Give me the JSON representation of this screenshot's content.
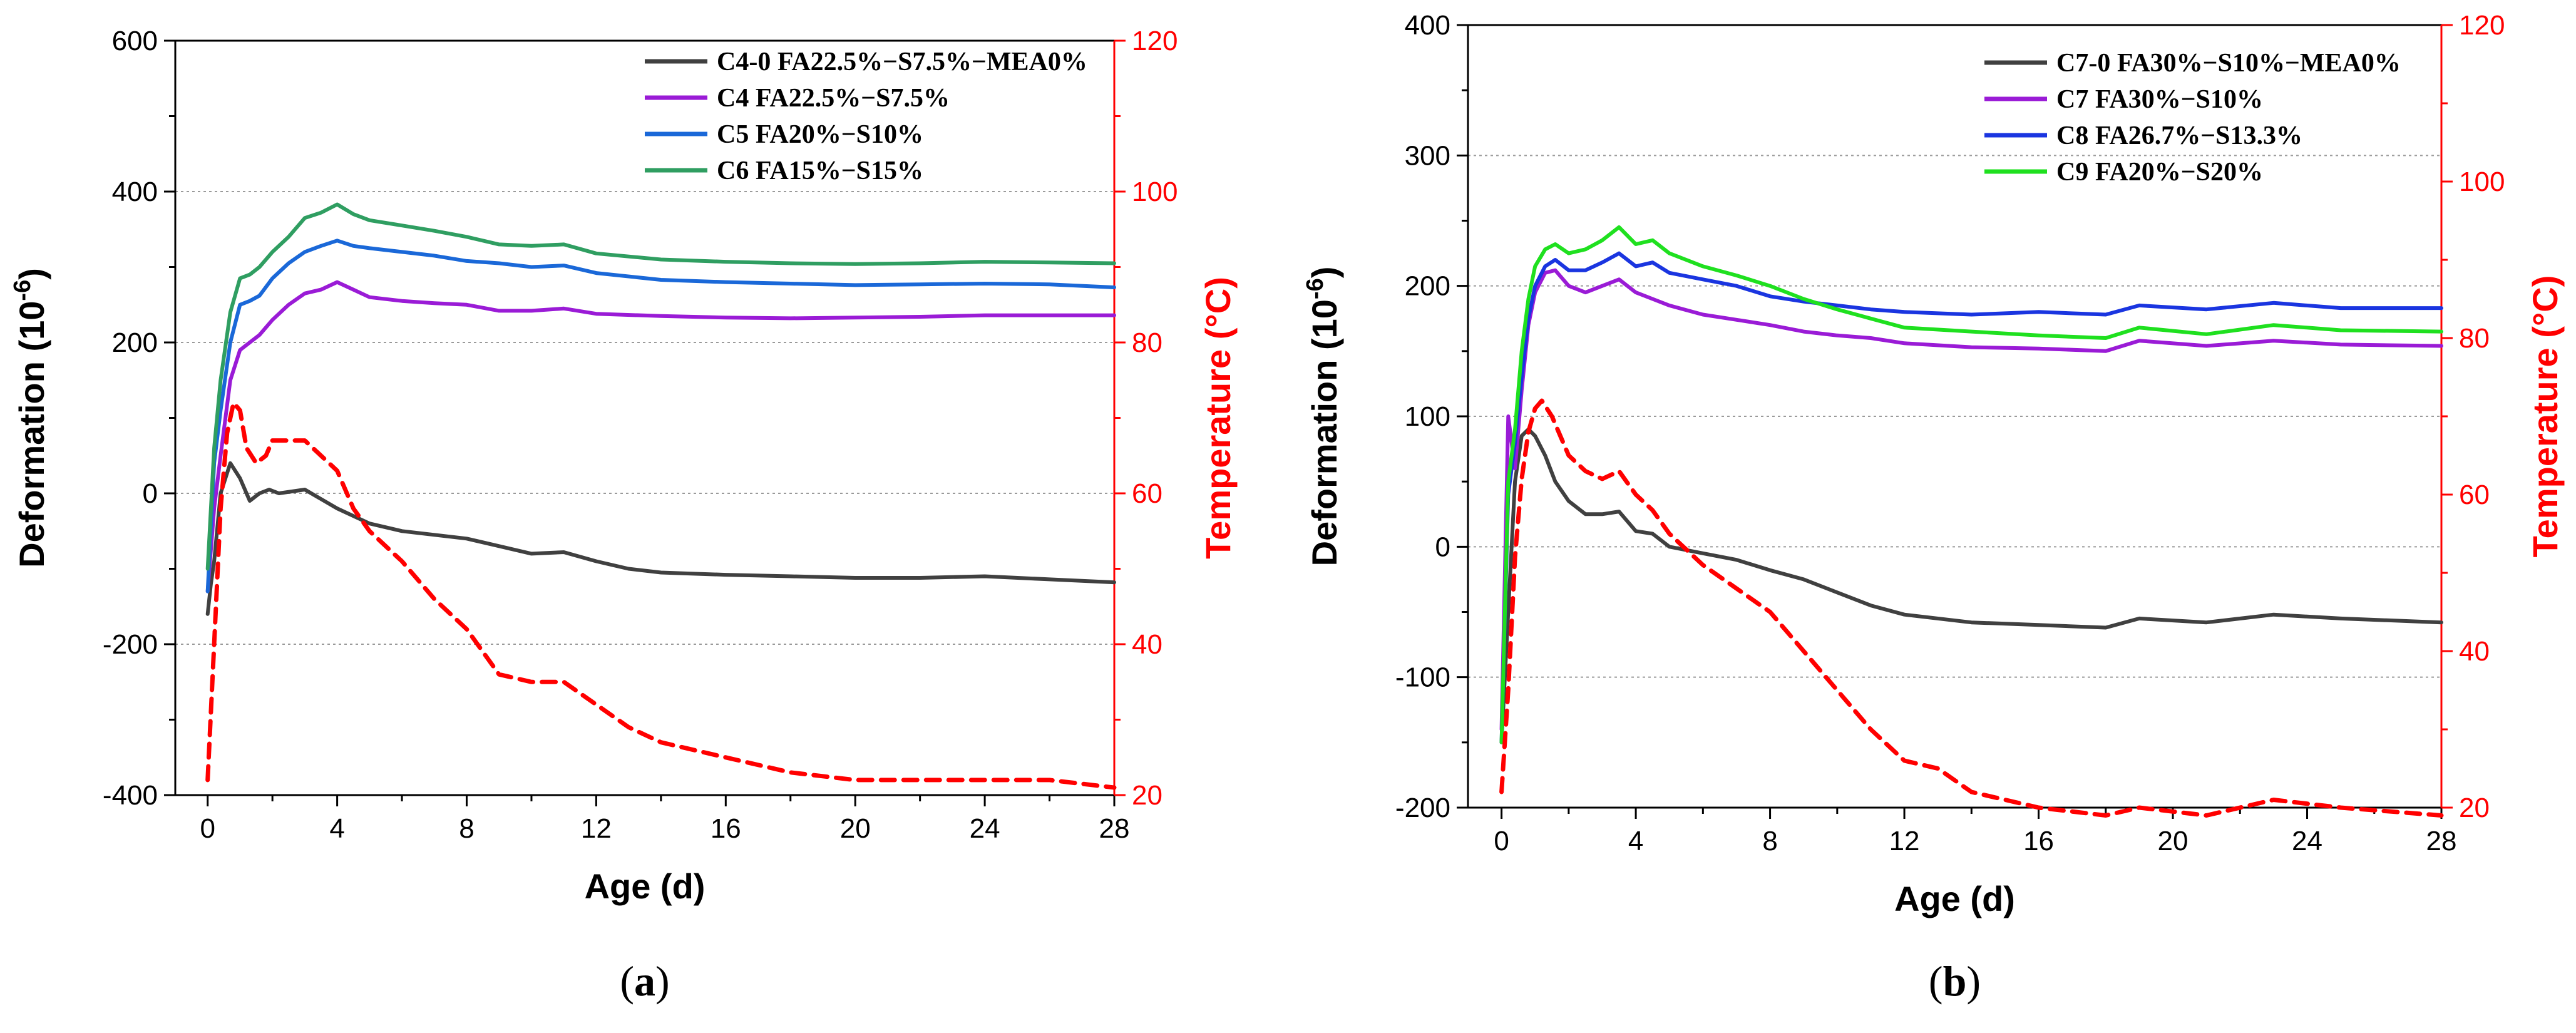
{
  "chart_data": [
    {
      "type": "line",
      "panel_label": "(a)",
      "panel_letter": "a",
      "xlabel": "Age (d)",
      "ylabel": "Deformation (10",
      "ylabel_exp": "-6",
      "ylabel_close": ")",
      "y2label": "Temperature (°C)",
      "xlim": [
        -1,
        28
      ],
      "ylim": [
        -400,
        600
      ],
      "y2lim": [
        20,
        120
      ],
      "xticks": [
        0,
        4,
        8,
        12,
        16,
        20,
        24,
        28
      ],
      "xtick_labels": [
        "0",
        "4",
        "8",
        "12",
        "16",
        "20",
        "24",
        "28"
      ],
      "yticks": [
        -400,
        -200,
        0,
        200,
        400,
        600
      ],
      "ytick_labels": [
        "-400",
        "-200",
        "0",
        "200",
        "400",
        "600"
      ],
      "y2ticks": [
        20,
        40,
        60,
        80,
        100,
        120
      ],
      "y2tick_labels": [
        "20",
        "40",
        "60",
        "80",
        "100",
        "120"
      ],
      "legend_position": "top-right",
      "series": [
        {
          "name": "C4-0 FA22.5%−S7.5%−MEA0%",
          "color": "#404040",
          "x": [
            0,
            0.1,
            0.2,
            0.4,
            0.7,
            1.0,
            1.3,
            1.6,
            1.9,
            2.2,
            3,
            4,
            5,
            6,
            8,
            9,
            10,
            11,
            12,
            13,
            14,
            16,
            18,
            20,
            22,
            24,
            26,
            28
          ],
          "values": [
            -160,
            -120,
            -90,
            0,
            40,
            20,
            -10,
            0,
            5,
            0,
            5,
            -20,
            -40,
            -50,
            -60,
            -70,
            -80,
            -78,
            -90,
            -100,
            -105,
            -108,
            -110,
            -112,
            -112,
            -110,
            -114,
            -118
          ]
        },
        {
          "name": "C4 FA22.5%−S7.5%",
          "color": "#9a1bd6",
          "x": [
            0,
            0.2,
            0.4,
            0.7,
            1.0,
            1.3,
            1.6,
            2,
            2.5,
            3,
            3.5,
            4,
            4.5,
            5,
            6,
            7,
            8,
            9,
            10,
            11,
            12,
            14,
            16,
            18,
            20,
            22,
            24,
            26,
            28
          ],
          "values": [
            -130,
            -20,
            50,
            150,
            190,
            200,
            210,
            230,
            250,
            265,
            270,
            280,
            270,
            260,
            255,
            252,
            250,
            242,
            242,
            245,
            238,
            235,
            233,
            232,
            233,
            234,
            236,
            236,
            236
          ]
        },
        {
          "name": "C5 FA20%−S10%",
          "color": "#1a68d8",
          "x": [
            0,
            0.2,
            0.4,
            0.7,
            1.0,
            1.3,
            1.6,
            2,
            2.5,
            3,
            3.5,
            4,
            4.5,
            5,
            6,
            7,
            8,
            9,
            10,
            11,
            12,
            14,
            16,
            18,
            20,
            22,
            24,
            26,
            28
          ],
          "values": [
            -130,
            40,
            110,
            200,
            250,
            255,
            262,
            285,
            305,
            320,
            328,
            335,
            328,
            325,
            320,
            315,
            308,
            305,
            300,
            302,
            292,
            283,
            280,
            278,
            276,
            277,
            278,
            277,
            273
          ]
        },
        {
          "name": "C6 FA15%−S15%",
          "color": "#2f9e61",
          "x": [
            0,
            0.2,
            0.4,
            0.7,
            1.0,
            1.3,
            1.6,
            2,
            2.5,
            3,
            3.5,
            4,
            4.5,
            5,
            6,
            7,
            8,
            9,
            10,
            11,
            12,
            14,
            16,
            18,
            20,
            22,
            24,
            26,
            28
          ],
          "values": [
            -100,
            60,
            150,
            240,
            285,
            290,
            300,
            320,
            340,
            365,
            372,
            383,
            370,
            362,
            355,
            348,
            340,
            330,
            328,
            330,
            318,
            310,
            307,
            305,
            304,
            305,
            307,
            306,
            305
          ]
        },
        {
          "name": "Temperature",
          "color": "#ff0000",
          "dashed": true,
          "axis": "y2",
          "x": [
            0,
            0.2,
            0.4,
            0.6,
            0.8,
            1.0,
            1.2,
            1.5,
            1.8,
            2,
            3,
            3.5,
            4,
            4.5,
            5,
            6,
            7,
            8,
            9,
            10,
            11,
            12,
            13,
            14,
            16,
            18,
            20,
            22,
            24,
            26,
            28
          ],
          "values": [
            22,
            40,
            58,
            68,
            72,
            71,
            66,
            64,
            65,
            67,
            67,
            65,
            63,
            58,
            55,
            51,
            46,
            42,
            36,
            35,
            35,
            32,
            29,
            27,
            25,
            23,
            22,
            22,
            22,
            22,
            21
          ]
        }
      ]
    },
    {
      "type": "line",
      "panel_label": "(b)",
      "panel_letter": "b",
      "xlabel": "Age (d)",
      "ylabel": "Deformation (10",
      "ylabel_exp": "-6",
      "ylabel_close": ")",
      "y2label": "Temperature (°C)",
      "xlim": [
        -1,
        28
      ],
      "ylim": [
        -200,
        400
      ],
      "y2lim": [
        20,
        120
      ],
      "xticks": [
        0,
        4,
        8,
        12,
        16,
        20,
        24,
        28
      ],
      "xtick_labels": [
        "0",
        "4",
        "8",
        "12",
        "16",
        "20",
        "24",
        "28"
      ],
      "yticks": [
        -200,
        -100,
        0,
        100,
        200,
        300,
        400
      ],
      "ytick_labels": [
        "-200",
        "-100",
        "0",
        "100",
        "200",
        "300",
        "400"
      ],
      "y2ticks": [
        20,
        40,
        60,
        80,
        100,
        120
      ],
      "y2tick_labels": [
        "20",
        "40",
        "60",
        "80",
        "100",
        "120"
      ],
      "legend_position": "top-right",
      "series": [
        {
          "name": "C7-0 FA30%−S10%−MEA0%",
          "color": "#404040",
          "x": [
            0,
            0.2,
            0.4,
            0.6,
            0.8,
            1.0,
            1.3,
            1.6,
            2,
            2.5,
            3,
            3.5,
            4,
            4.5,
            5,
            6,
            7,
            8,
            9,
            10,
            11,
            12,
            14,
            16,
            18,
            19,
            21,
            23,
            25,
            28
          ],
          "values": [
            -150,
            -50,
            50,
            85,
            90,
            85,
            70,
            50,
            35,
            25,
            25,
            27,
            12,
            10,
            0,
            -5,
            -10,
            -18,
            -25,
            -35,
            -45,
            -52,
            -58,
            -60,
            -62,
            -55,
            -58,
            -52,
            -55,
            -58
          ]
        },
        {
          "name": "C7 FA30%−S10%",
          "color": "#9a1bd6",
          "x": [
            0,
            0.2,
            0.4,
            0.6,
            0.8,
            1.0,
            1.3,
            1.6,
            2,
            2.5,
            3,
            3.5,
            4,
            4.5,
            5,
            6,
            7,
            8,
            9,
            10,
            11,
            12,
            14,
            16,
            18,
            19,
            21,
            23,
            25,
            28
          ],
          "values": [
            -140,
            100,
            60,
            120,
            170,
            195,
            210,
            212,
            200,
            195,
            200,
            205,
            195,
            190,
            185,
            178,
            174,
            170,
            165,
            162,
            160,
            156,
            153,
            152,
            150,
            158,
            154,
            158,
            155,
            154
          ]
        },
        {
          "name": "C8 FA26.7%−S13.3%",
          "color": "#1a35e0",
          "x": [
            0,
            0.2,
            0.4,
            0.6,
            0.8,
            1.0,
            1.3,
            1.6,
            2,
            2.5,
            3,
            3.5,
            4,
            4.5,
            5,
            6,
            7,
            8,
            9,
            10,
            11,
            12,
            14,
            16,
            18,
            19,
            21,
            23,
            25,
            28
          ],
          "values": [
            -150,
            40,
            80,
            130,
            175,
            200,
            215,
            220,
            212,
            212,
            218,
            225,
            215,
            218,
            210,
            205,
            200,
            192,
            188,
            185,
            182,
            180,
            178,
            180,
            178,
            185,
            182,
            187,
            183,
            183
          ]
        },
        {
          "name": "C9 FA20%−S20%",
          "color": "#1fe01f",
          "x": [
            0,
            0.2,
            0.4,
            0.6,
            0.8,
            1.0,
            1.3,
            1.6,
            2,
            2.5,
            3,
            3.5,
            4,
            4.5,
            5,
            6,
            7,
            8,
            9,
            10,
            11,
            12,
            14,
            16,
            18,
            19,
            21,
            23,
            25,
            28
          ],
          "values": [
            -150,
            50,
            90,
            150,
            190,
            215,
            228,
            232,
            225,
            228,
            235,
            245,
            232,
            235,
            225,
            215,
            208,
            200,
            190,
            182,
            175,
            168,
            165,
            162,
            160,
            168,
            163,
            170,
            166,
            165
          ]
        },
        {
          "name": "Temperature",
          "color": "#ff0000",
          "dashed": true,
          "axis": "y2",
          "x": [
            0,
            0.2,
            0.4,
            0.6,
            0.8,
            1.0,
            1.2,
            1.5,
            2,
            2.5,
            3,
            3.5,
            4,
            4.5,
            5,
            6,
            7,
            8,
            9,
            10,
            11,
            12,
            13,
            14,
            16,
            18,
            19,
            21,
            23,
            25,
            28
          ],
          "values": [
            22,
            35,
            52,
            62,
            68,
            71,
            72,
            70,
            65,
            63,
            62,
            63,
            60,
            58,
            55,
            51,
            48,
            45,
            40,
            35,
            30,
            26,
            25,
            22,
            20,
            19,
            20,
            19,
            21,
            20,
            19
          ]
        }
      ]
    }
  ]
}
